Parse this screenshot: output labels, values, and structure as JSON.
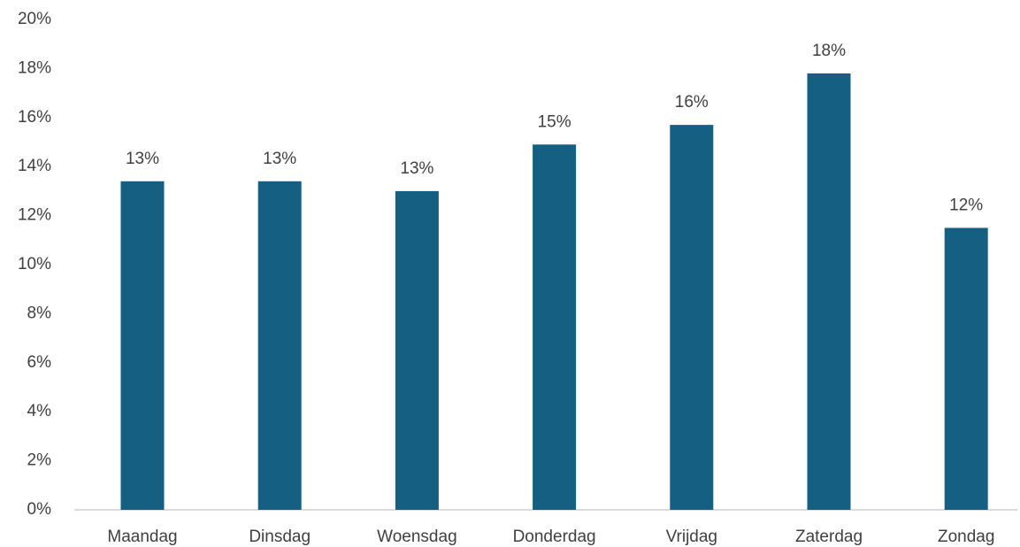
{
  "chart_data": {
    "type": "bar",
    "categories": [
      "Maandag",
      "Dinsdag",
      "Woensdag",
      "Donderdag",
      "Vrijdag",
      "Zaterdag",
      "Zondag"
    ],
    "values": [
      13.4,
      13.4,
      13.0,
      14.9,
      15.7,
      17.8,
      11.5
    ],
    "value_labels": [
      "13%",
      "13%",
      "13%",
      "15%",
      "16%",
      "18%",
      "12%"
    ],
    "color": "#156082",
    "ylim": [
      0,
      20
    ],
    "yticks": [
      {
        "value": 0,
        "label": "0%"
      },
      {
        "value": 2,
        "label": "2%"
      },
      {
        "value": 4,
        "label": "4%"
      },
      {
        "value": 6,
        "label": "6%"
      },
      {
        "value": 8,
        "label": "8%"
      },
      {
        "value": 10,
        "label": "10%"
      },
      {
        "value": 12,
        "label": "12%"
      },
      {
        "value": 14,
        "label": "14%"
      },
      {
        "value": 16,
        "label": "16%"
      },
      {
        "value": 18,
        "label": "18%"
      },
      {
        "value": 20,
        "label": "20%"
      }
    ],
    "grid": false
  }
}
